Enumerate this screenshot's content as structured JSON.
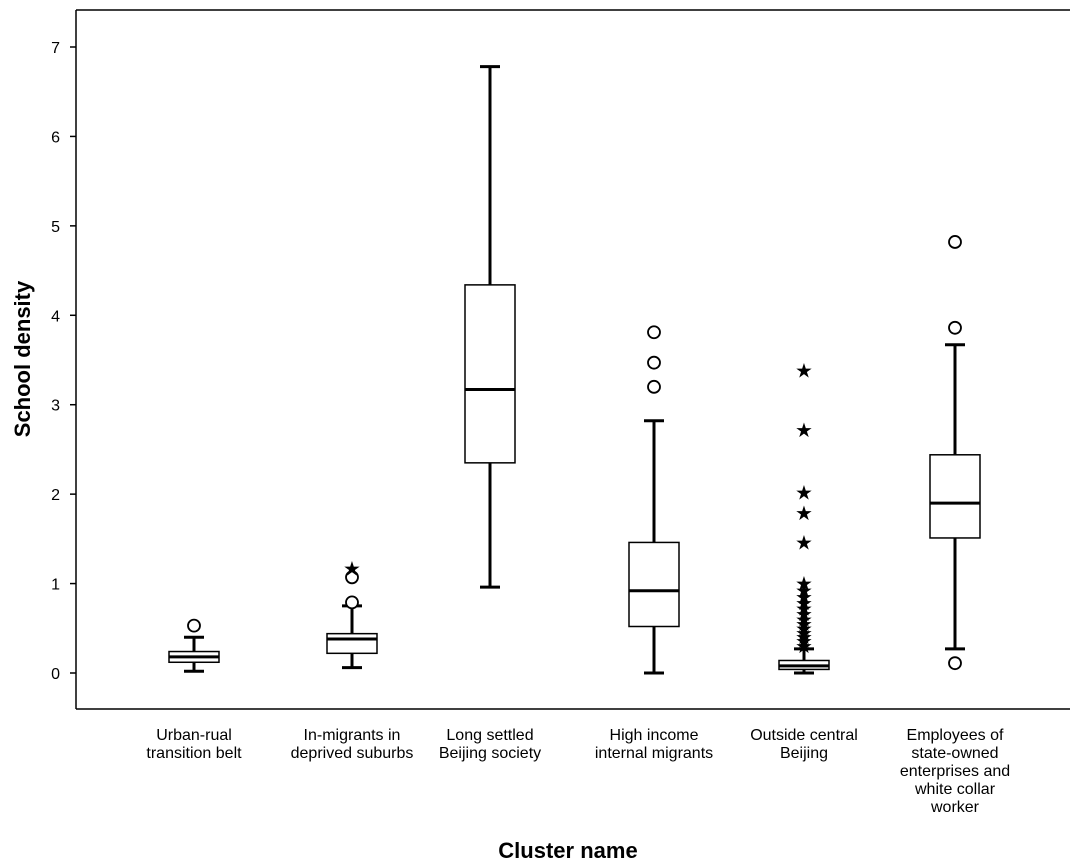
{
  "chart_data": {
    "type": "boxplot",
    "title": "",
    "xlabel": "Cluster name",
    "ylabel": "School density",
    "ylim": [
      -0.4,
      7.3
    ],
    "yticks": [
      0,
      1,
      2,
      3,
      4,
      5,
      6,
      7
    ],
    "grid": false,
    "categories": [
      [
        "Urban-rual",
        "transition belt"
      ],
      [
        "In-migrants in",
        "deprived suburbs"
      ],
      [
        "Long settled",
        "Beijing society"
      ],
      [
        "High income",
        "internal migrants"
      ],
      [
        "Outside central",
        "Beijing"
      ],
      [
        "Employees of",
        "state-owned",
        "enterprises and",
        "white collar",
        "worker"
      ]
    ],
    "boxes": [
      {
        "whisker_low": 0.02,
        "q1": 0.12,
        "median": 0.18,
        "q3": 0.24,
        "whisker_high": 0.4,
        "outliers": [
          0.53
        ],
        "extremes": []
      },
      {
        "whisker_low": 0.06,
        "q1": 0.22,
        "median": 0.38,
        "q3": 0.44,
        "whisker_high": 0.75,
        "outliers": [
          0.79,
          1.07
        ],
        "extremes": [
          1.17
        ]
      },
      {
        "whisker_low": 0.96,
        "q1": 2.35,
        "median": 3.17,
        "q3": 4.34,
        "whisker_high": 6.78,
        "outliers": [],
        "extremes": []
      },
      {
        "whisker_low": 0.0,
        "q1": 0.52,
        "median": 0.92,
        "q3": 1.46,
        "whisker_high": 2.82,
        "outliers": [
          3.2,
          3.47,
          3.81
        ],
        "extremes": []
      },
      {
        "whisker_low": 0.0,
        "q1": 0.04,
        "median": 0.08,
        "q3": 0.14,
        "whisker_high": 0.27,
        "outliers": [],
        "extremes": [
          0.3,
          0.36,
          0.4,
          0.45,
          0.5,
          0.55,
          0.6,
          0.66,
          0.72,
          0.78,
          0.85,
          0.92,
          1.0,
          1.46,
          1.79,
          2.02,
          2.72,
          3.38
        ]
      },
      {
        "whisker_low": 0.27,
        "q1": 1.51,
        "median": 1.9,
        "q3": 2.44,
        "whisker_high": 3.67,
        "outliers": [
          0.11,
          3.86,
          4.82
        ],
        "extremes": []
      }
    ]
  }
}
